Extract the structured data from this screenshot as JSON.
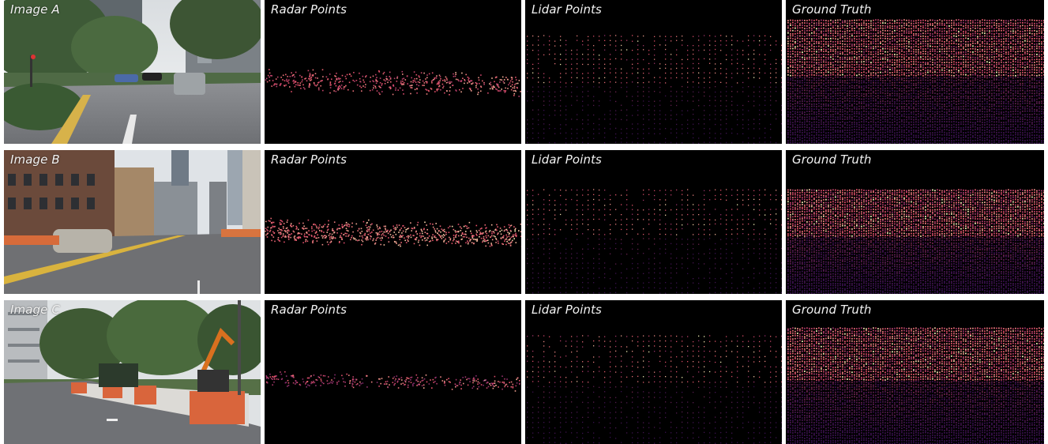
{
  "rows": [
    {
      "image_label": "Image A",
      "radar_label": "Radar Points",
      "lidar_label": "Lidar Points",
      "gt_label": "Ground Truth"
    },
    {
      "image_label": "Image B",
      "radar_label": "Radar Points",
      "lidar_label": "Lidar Points",
      "gt_label": "Ground Truth"
    },
    {
      "image_label": "Image C",
      "radar_label": "Radar Points",
      "lidar_label": "Lidar Points",
      "gt_label": "Ground Truth"
    }
  ],
  "colors": {
    "background": "#000000",
    "separator": "#ffffff",
    "depth_near": "#fcfdbf",
    "depth_mid": "#e8526a",
    "depth_far": "#3b0f70"
  }
}
